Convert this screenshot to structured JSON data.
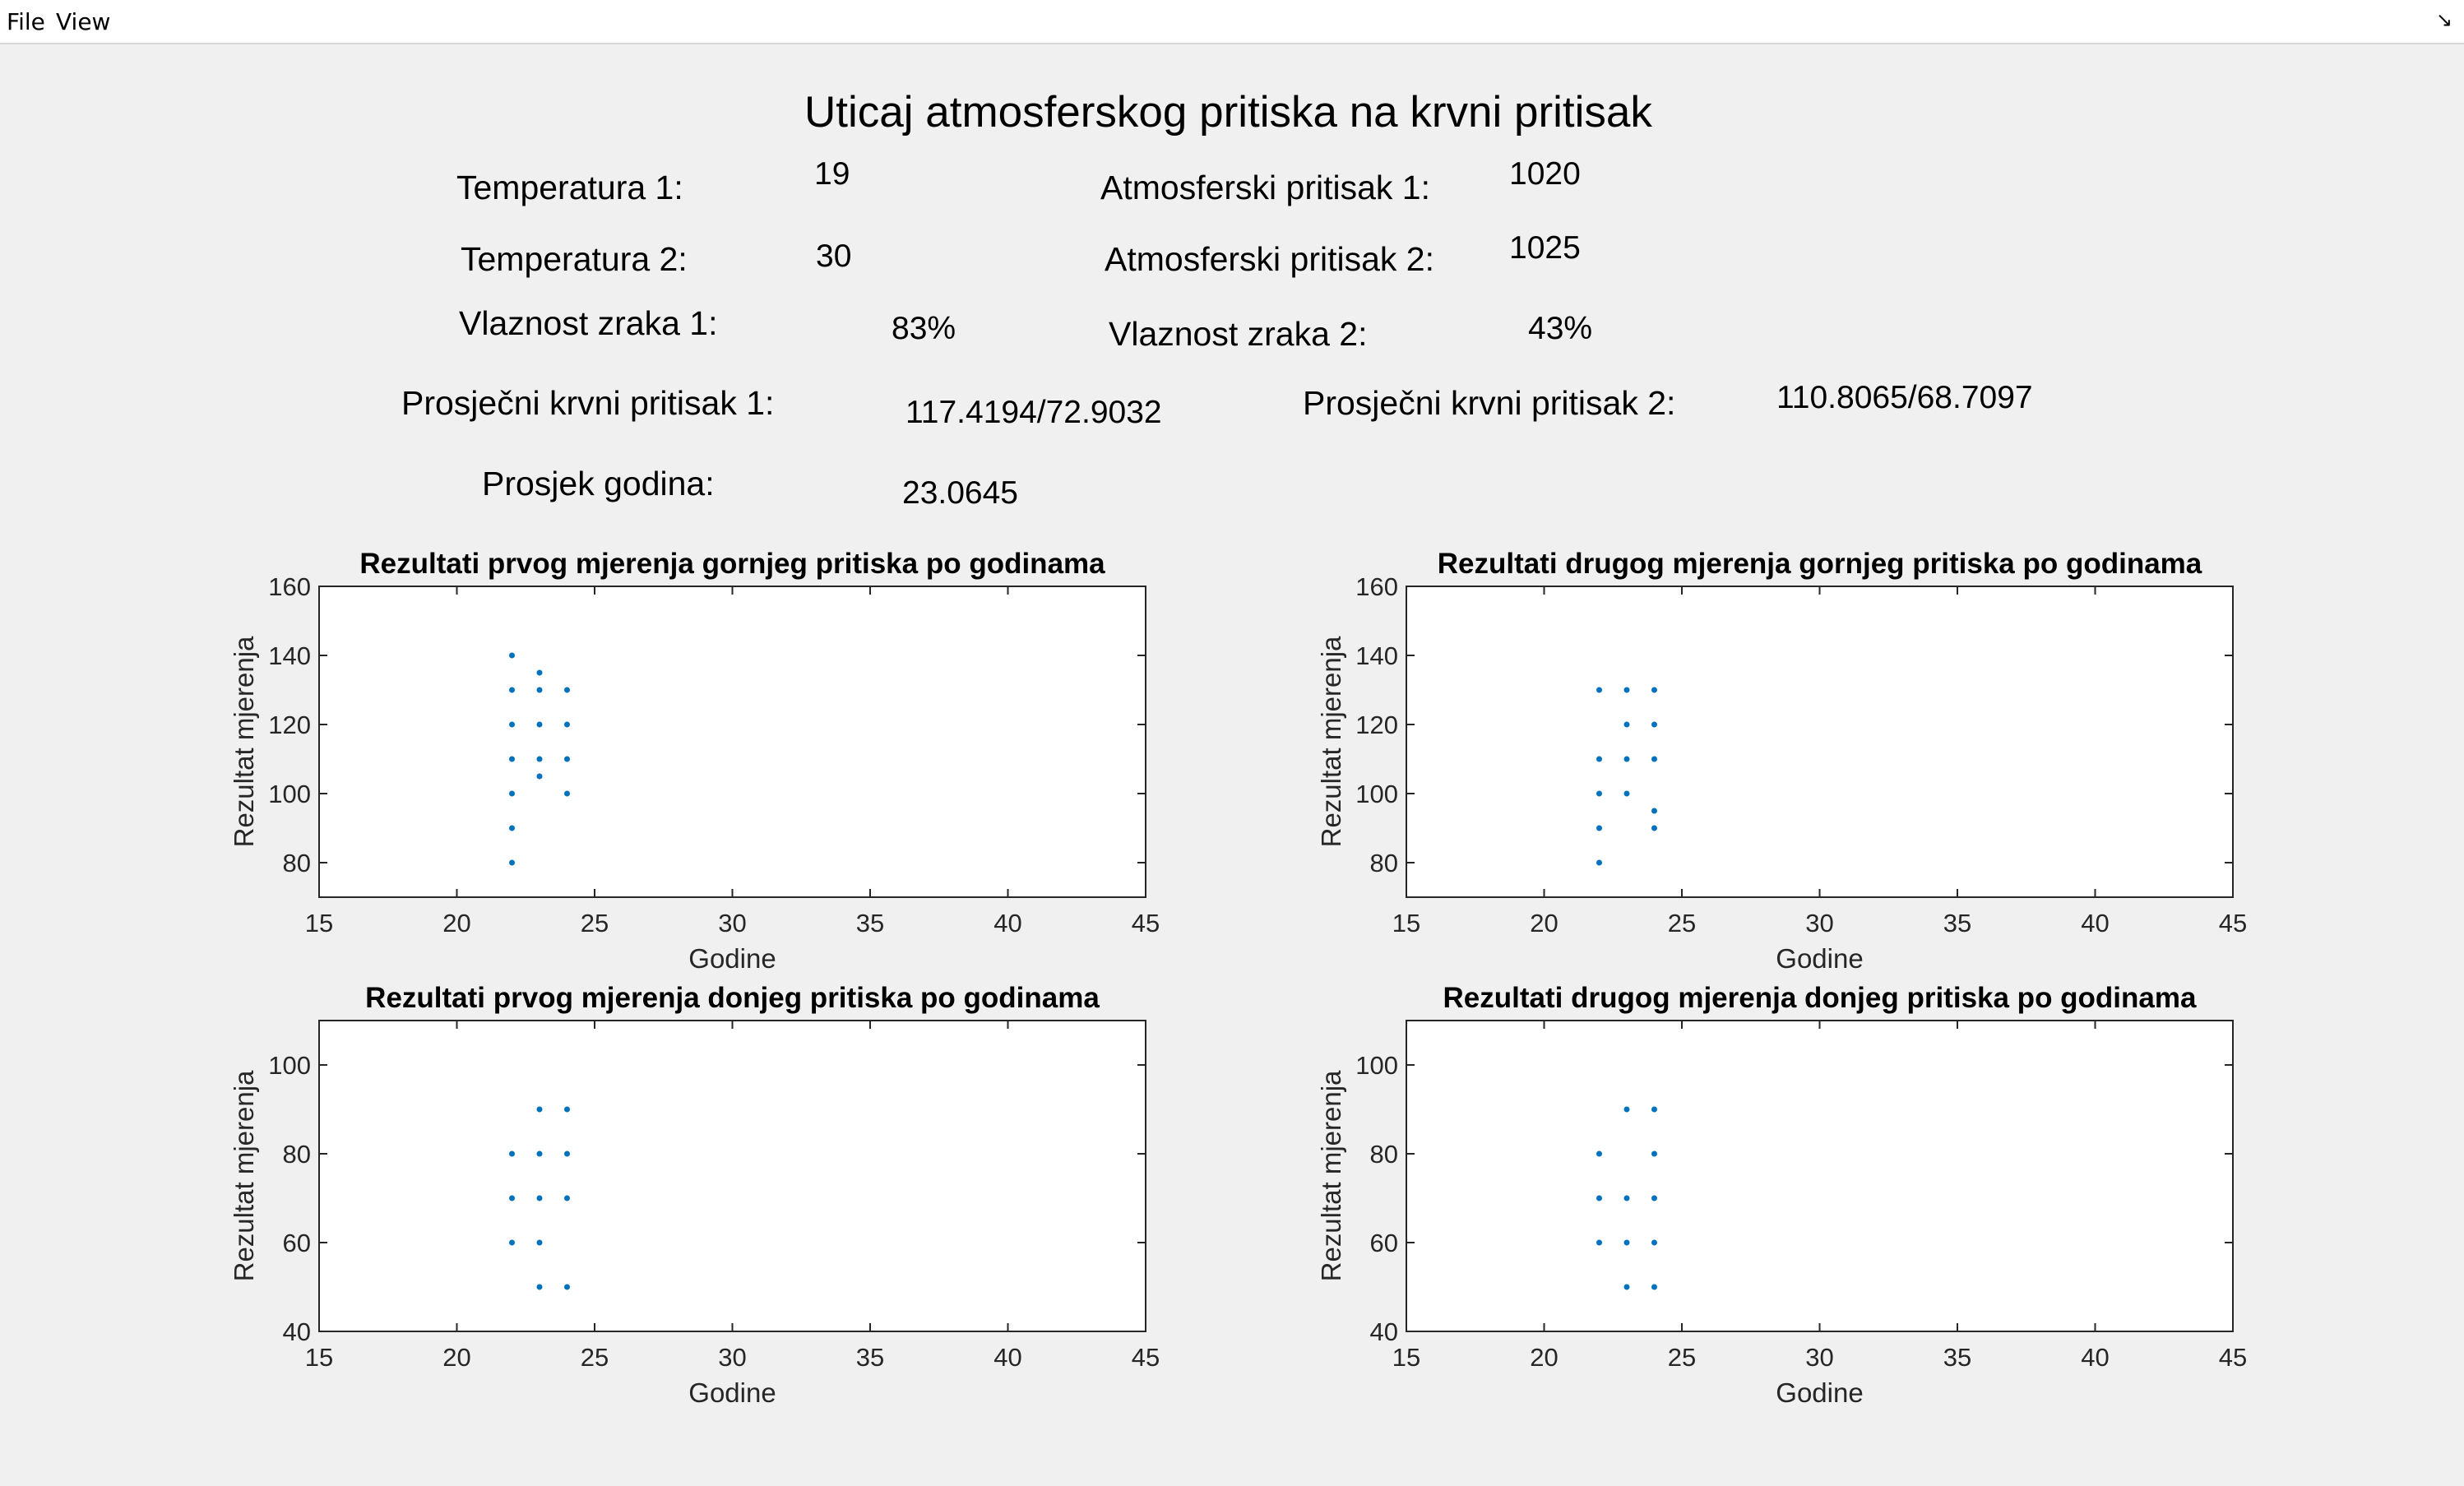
{
  "menu": {
    "file": "File",
    "view": "View"
  },
  "page_title": "Uticaj atmosferskog pritiska na krvni pritisak",
  "fields": {
    "temp1_label": "Temperatura 1:",
    "temp1_value": "19",
    "temp2_label": "Temperatura 2:",
    "temp2_value": "30",
    "atm1_label": "Atmosferski pritisak 1:",
    "atm1_value": "1020",
    "atm2_label": "Atmosferski pritisak 2:",
    "atm2_value": "1025",
    "hum1_label": "Vlaznost zraka 1:",
    "hum1_value": "83%",
    "hum2_label": "Vlaznost zraka 2:",
    "hum2_value": "43%",
    "bp1_label": "Prosječni krvni pritisak 1:",
    "bp1_value": "117.4194/72.9032",
    "bp2_label": "Prosječni krvni pritisak 2:",
    "bp2_value": "110.8065/68.7097",
    "age_label": "Prosjek godina:",
    "age_value": "23.0645"
  },
  "colors": {
    "marker": "#0072bd",
    "axes_bg": "#ffffff",
    "axes_line": "#262626"
  },
  "chart_data": [
    {
      "type": "scatter",
      "title": "Rezultati prvog mjerenja gornjeg pritiska po godinama",
      "xlabel": "Godine",
      "ylabel": "Rezultat mjerenja",
      "xlim": [
        15,
        45
      ],
      "ylim": [
        70,
        160
      ],
      "xticks": [
        15,
        20,
        25,
        30,
        35,
        40,
        45
      ],
      "yticks": [
        80,
        100,
        120,
        140,
        160
      ],
      "points": [
        [
          22,
          140
        ],
        [
          22,
          130
        ],
        [
          22,
          120
        ],
        [
          22,
          110
        ],
        [
          22,
          100
        ],
        [
          22,
          90
        ],
        [
          22,
          80
        ],
        [
          23,
          135
        ],
        [
          23,
          130
        ],
        [
          23,
          120
        ],
        [
          23,
          110
        ],
        [
          23,
          105
        ],
        [
          24,
          130
        ],
        [
          24,
          120
        ],
        [
          24,
          110
        ],
        [
          24,
          100
        ]
      ]
    },
    {
      "type": "scatter",
      "title": "Rezultati drugog mjerenja gornjeg pritiska po godinama",
      "xlabel": "Godine",
      "ylabel": "Rezultat mjerenja",
      "xlim": [
        15,
        45
      ],
      "ylim": [
        70,
        160
      ],
      "xticks": [
        15,
        20,
        25,
        30,
        35,
        40,
        45
      ],
      "yticks": [
        80,
        100,
        120,
        140,
        160
      ],
      "points": [
        [
          22,
          130
        ],
        [
          22,
          110
        ],
        [
          22,
          100
        ],
        [
          22,
          90
        ],
        [
          22,
          80
        ],
        [
          23,
          130
        ],
        [
          23,
          120
        ],
        [
          23,
          110
        ],
        [
          23,
          100
        ],
        [
          24,
          130
        ],
        [
          24,
          120
        ],
        [
          24,
          110
        ],
        [
          24,
          95
        ],
        [
          24,
          90
        ]
      ]
    },
    {
      "type": "scatter",
      "title": "Rezultati prvog mjerenja donjeg pritiska po godinama",
      "xlabel": "Godine",
      "ylabel": "Rezultat mjerenja",
      "xlim": [
        15,
        45
      ],
      "ylim": [
        40,
        110
      ],
      "xticks": [
        15,
        20,
        25,
        30,
        35,
        40,
        45
      ],
      "yticks": [
        40,
        60,
        80,
        100
      ],
      "points": [
        [
          22,
          80
        ],
        [
          22,
          70
        ],
        [
          22,
          60
        ],
        [
          23,
          90
        ],
        [
          23,
          80
        ],
        [
          23,
          70
        ],
        [
          23,
          60
        ],
        [
          23,
          50
        ],
        [
          24,
          90
        ],
        [
          24,
          80
        ],
        [
          24,
          70
        ],
        [
          24,
          50
        ]
      ]
    },
    {
      "type": "scatter",
      "title": "Rezultati drugog mjerenja donjeg pritiska po godinama",
      "xlabel": "Godine",
      "ylabel": "Rezultat mjerenja",
      "xlim": [
        15,
        45
      ],
      "ylim": [
        40,
        110
      ],
      "xticks": [
        15,
        20,
        25,
        30,
        35,
        40,
        45
      ],
      "yticks": [
        40,
        60,
        80,
        100
      ],
      "points": [
        [
          22,
          80
        ],
        [
          22,
          70
        ],
        [
          22,
          60
        ],
        [
          23,
          90
        ],
        [
          23,
          70
        ],
        [
          23,
          60
        ],
        [
          23,
          50
        ],
        [
          24,
          90
        ],
        [
          24,
          80
        ],
        [
          24,
          70
        ],
        [
          24,
          60
        ],
        [
          24,
          50
        ]
      ]
    }
  ]
}
